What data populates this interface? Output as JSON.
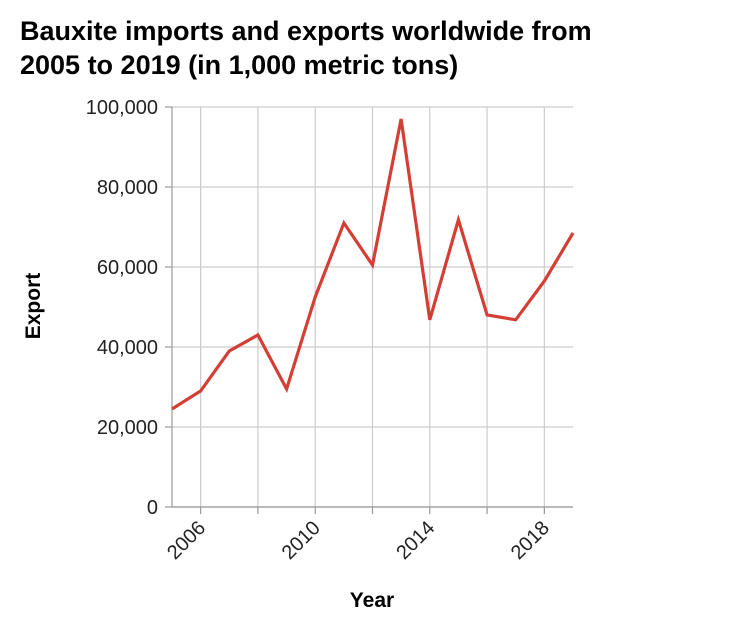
{
  "chart_data": {
    "type": "line",
    "title": "Bauxite imports and exports worldwide from\n2005 to 2019 (in 1,000 metric tons)",
    "xlabel": "Year",
    "ylabel": "Export",
    "xlim": [
      2005,
      2019
    ],
    "ylim": [
      0,
      100000
    ],
    "x_ticks": [
      2006,
      2010,
      2014,
      2018
    ],
    "x_tick_labels": [
      "2006",
      "2010",
      "2014",
      "2018"
    ],
    "y_ticks": [
      0,
      20000,
      40000,
      60000,
      80000,
      100000
    ],
    "y_tick_labels": [
      "0",
      "20,000",
      "40,000",
      "60,000",
      "80,000",
      "100,000"
    ],
    "grid": true,
    "legend": "none",
    "series": [
      {
        "color": "#d43f35",
        "x": [
          2005,
          2006,
          2007,
          2008,
          2009,
          2010,
          2011,
          2012,
          2013,
          2014,
          2015,
          2016,
          2017,
          2018,
          2019
        ],
        "y": [
          24500,
          29000,
          39000,
          43000,
          29500,
          52500,
          71000,
          60500,
          97000,
          46800,
          71800,
          48000,
          46800,
          56500,
          68500
        ]
      }
    ]
  }
}
